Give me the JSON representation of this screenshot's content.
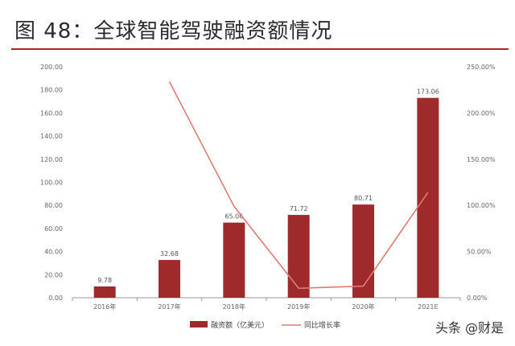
{
  "title": "图 48：全球智能驾驶融资额情况",
  "watermark": "头条 @财是",
  "colors": {
    "bar": "#9e2a2b",
    "line": "#e07b74",
    "axis": "#999999",
    "rule": "#b22222"
  },
  "chart_data": {
    "type": "bar+line",
    "categories": [
      "2016年",
      "2017年",
      "2018年",
      "2019年",
      "2020年",
      "2021E"
    ],
    "series": [
      {
        "name": "融资额（亿美元）",
        "type": "bar",
        "axis": "left",
        "values": [
          9.78,
          32.68,
          65.06,
          71.72,
          80.71,
          173.06
        ],
        "labels": [
          "9.78",
          "32.68",
          "65.06",
          "71.72",
          "80.71",
          "173.06"
        ]
      },
      {
        "name": "同比增长率",
        "type": "line",
        "axis": "right",
        "values": [
          null,
          234.0,
          99.0,
          10.2,
          12.5,
          114.0
        ]
      }
    ],
    "left_axis": {
      "ylim": [
        0,
        200
      ],
      "ticks": [
        "0.00",
        "20.00",
        "40.00",
        "60.00",
        "80.00",
        "100.00",
        "120.00",
        "140.00",
        "160.00",
        "180.00",
        "200.00"
      ]
    },
    "right_axis": {
      "ylim": [
        0,
        250
      ],
      "ticks": [
        "0.00%",
        "50.00%",
        "100.00%",
        "150.00%",
        "200.00%",
        "250.00%"
      ]
    },
    "legend_position": "bottom",
    "grid": false
  }
}
